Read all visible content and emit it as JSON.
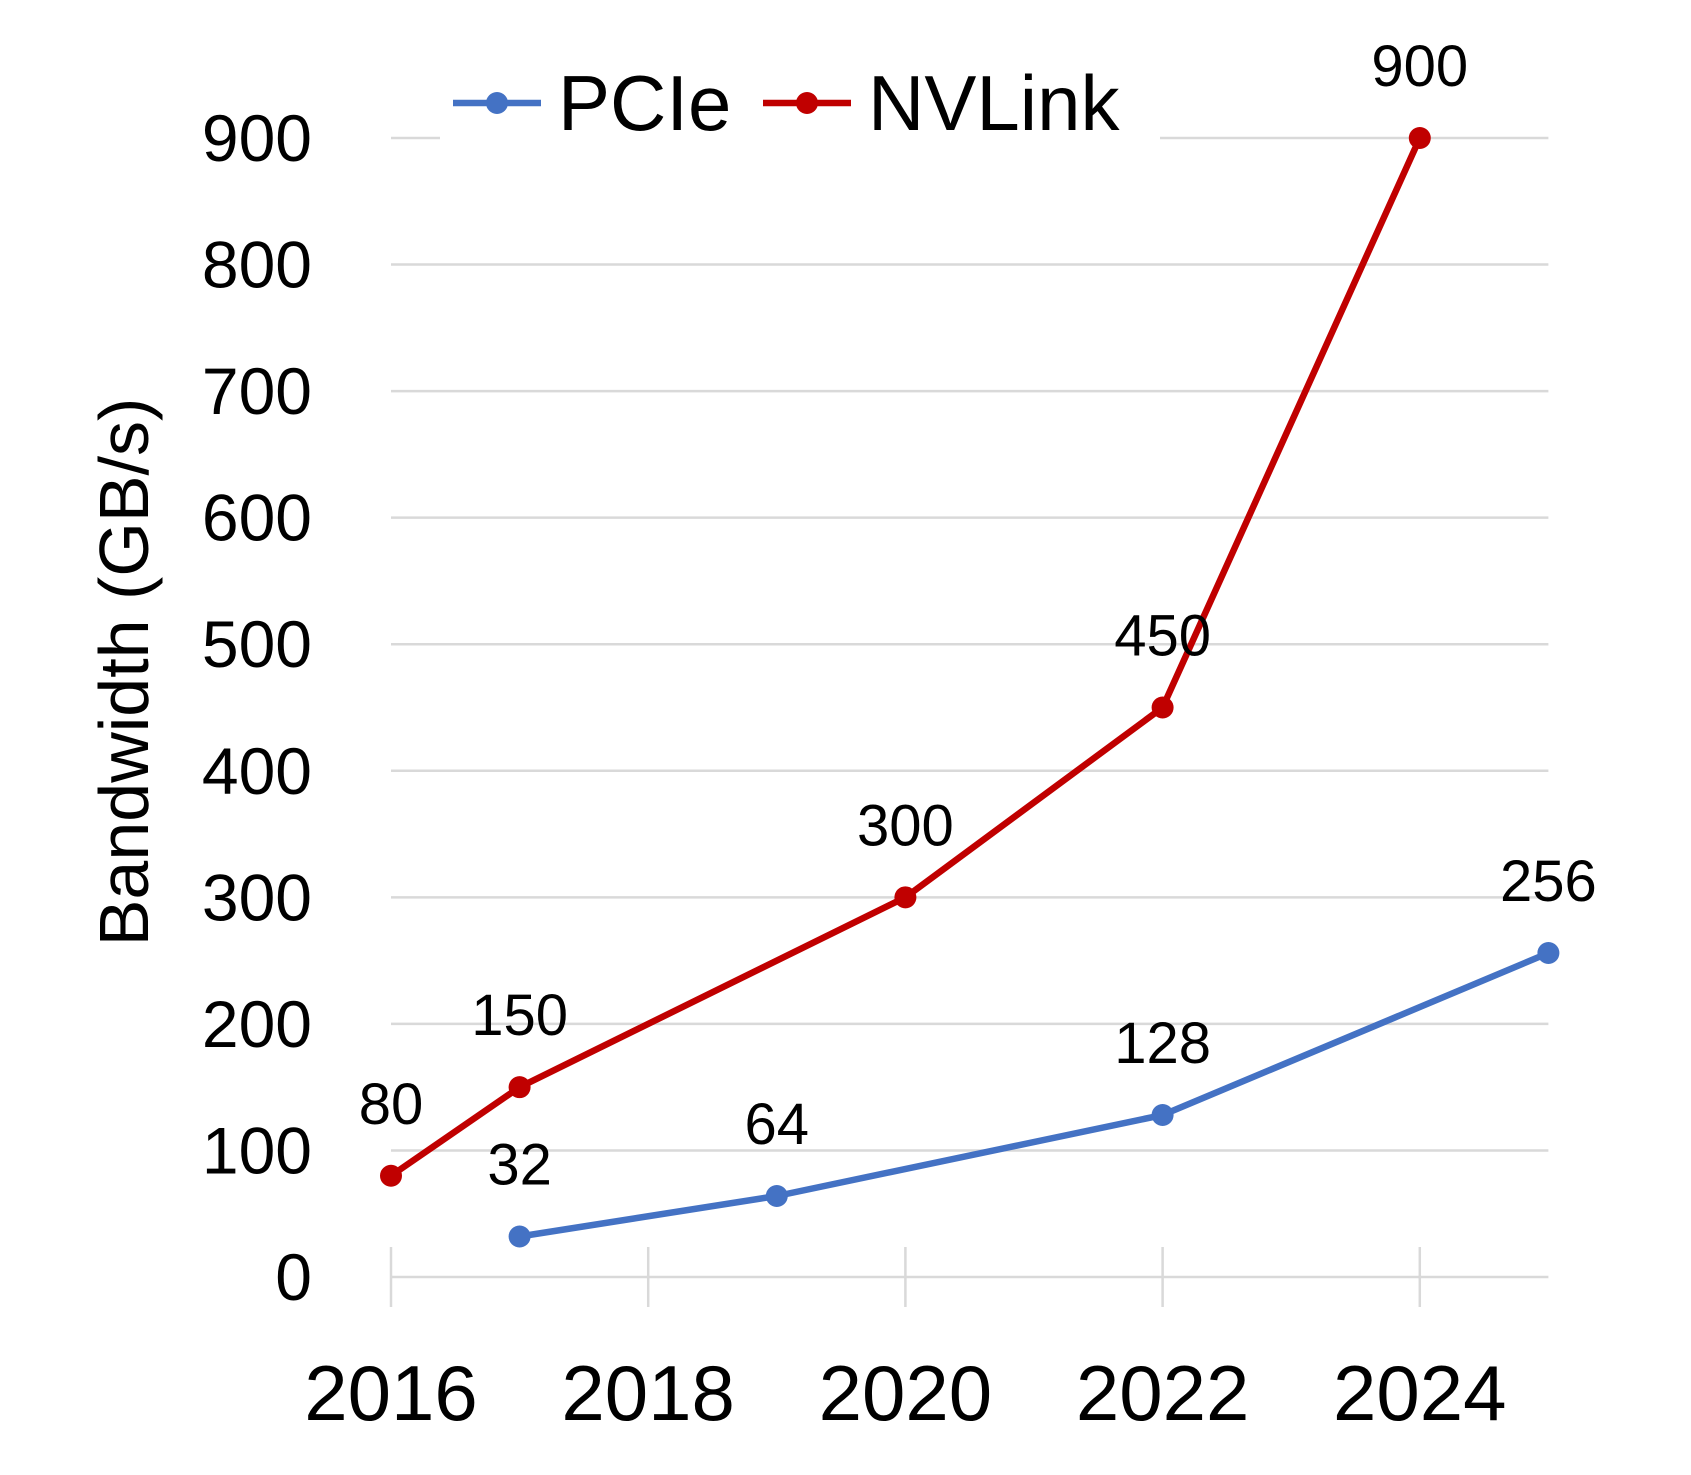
{
  "chart_data": {
    "type": "line",
    "title": "",
    "xlabel": "",
    "ylabel": "Bandwidth (GB/s)",
    "xlim": [
      2016,
      2025
    ],
    "ylim": [
      0,
      900
    ],
    "xticks": [
      "2016",
      "2018",
      "2020",
      "2022",
      "2024"
    ],
    "yticks": [
      "0",
      "100",
      "200",
      "300",
      "400",
      "500",
      "600",
      "700",
      "800",
      "900"
    ],
    "grid": "horizontal",
    "legend_position": "top",
    "series": [
      {
        "name": "PCIe",
        "color": "#4472C4",
        "x": [
          2017,
          2019,
          2022,
          2025
        ],
        "y": [
          32,
          64,
          128,
          256
        ],
        "labels": [
          "32",
          "64",
          "128",
          "256"
        ]
      },
      {
        "name": "NVLink",
        "color": "#C00000",
        "x": [
          2016,
          2017,
          2020,
          2022,
          2024
        ],
        "y": [
          80,
          150,
          300,
          450,
          900
        ],
        "labels": [
          "80",
          "150",
          "300",
          "450",
          "900"
        ]
      }
    ]
  }
}
